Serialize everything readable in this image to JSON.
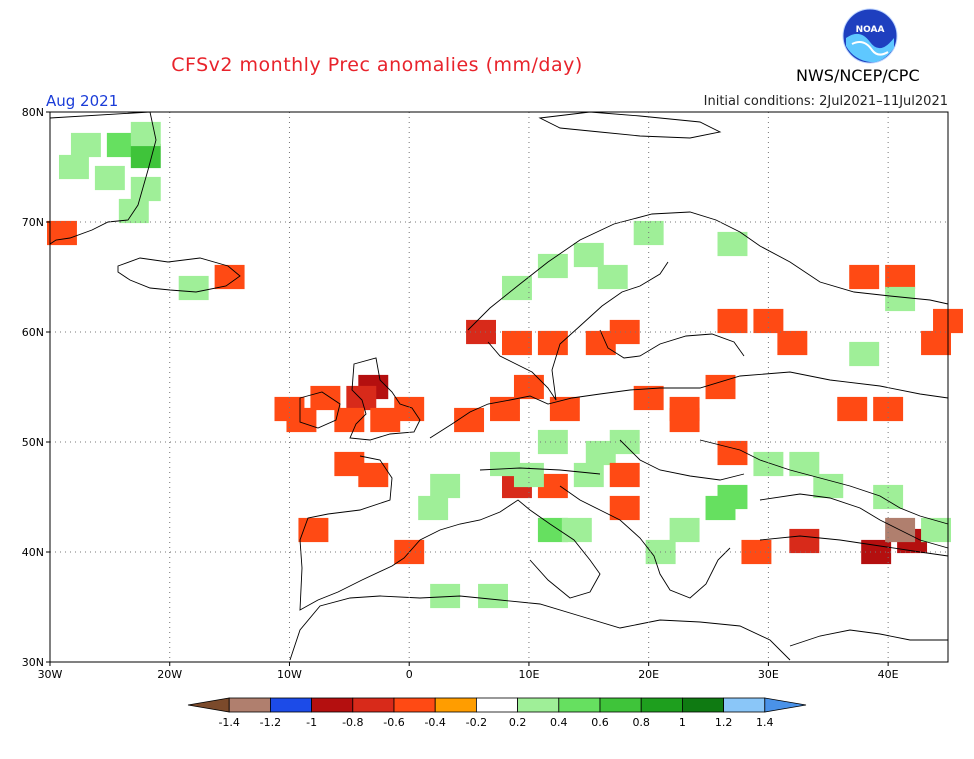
{
  "title": "CFSv2 monthly Prec anomalies (mm/day)",
  "agency": "NWS/NCEP/CPC",
  "logo_text": "NOAA",
  "month_label": "Aug 2021",
  "initial_conditions": "Initial conditions: 2Jul2021–11Jul2021",
  "axes": {
    "lon_ticks": [
      "30W",
      "20W",
      "10W",
      "0",
      "10E",
      "20E",
      "30E",
      "40E"
    ],
    "lat_ticks": [
      "80N",
      "70N",
      "60N",
      "50N",
      "40N",
      "30N"
    ],
    "lon_range": [
      -30,
      45
    ],
    "lat_range": [
      30,
      80
    ]
  },
  "colorbar": {
    "labels": [
      "-1.4",
      "-1.2",
      "-1",
      "-0.8",
      "-0.6",
      "-0.4",
      "-0.2",
      "0.2",
      "0.4",
      "0.6",
      "0.8",
      "1",
      "1.2",
      "1.4"
    ],
    "colors": [
      "#7b4a2b",
      "#b07f6e",
      "#1c4be8",
      "#b40f0f",
      "#d82a1a",
      "#ff4a14",
      "#ff9d00",
      "#ffffff",
      "#9fef98",
      "#66e060",
      "#3fc43a",
      "#1e9f1e",
      "#0f7a12",
      "#8ac6f8",
      "#4a92e8"
    ]
  },
  "anomaly_cells": [
    {
      "lon": -27,
      "lat": 77,
      "v": 0.3
    },
    {
      "lon": -24,
      "lat": 77,
      "v": 0.5
    },
    {
      "lon": -22,
      "lat": 76,
      "v": 0.8
    },
    {
      "lon": -25,
      "lat": 74,
      "v": 0.4
    },
    {
      "lon": -22,
      "lat": 73,
      "v": 0.4
    },
    {
      "lon": -23,
      "lat": 71,
      "v": 0.3
    },
    {
      "lon": -28,
      "lat": 75,
      "v": 0.3
    },
    {
      "lon": -22,
      "lat": 78,
      "v": 0.4
    },
    {
      "lon": -18,
      "lat": 64,
      "v": 0.3
    },
    {
      "lon": -15,
      "lat": 65,
      "v": -0.4
    },
    {
      "lon": -29,
      "lat": 69,
      "v": -0.4
    },
    {
      "lon": 12,
      "lat": 66,
      "v": 0.4
    },
    {
      "lon": 15,
      "lat": 67,
      "v": 0.4
    },
    {
      "lon": 17,
      "lat": 65,
      "v": 0.3
    },
    {
      "lon": 9,
      "lat": 64,
      "v": 0.4
    },
    {
      "lon": 20,
      "lat": 69,
      "v": 0.3
    },
    {
      "lon": 27,
      "lat": 68,
      "v": 0.3
    },
    {
      "lon": 6,
      "lat": 60,
      "v": -0.6
    },
    {
      "lon": 9,
      "lat": 59,
      "v": -0.4
    },
    {
      "lon": 12,
      "lat": 59,
      "v": -0.4
    },
    {
      "lon": 16,
      "lat": 59,
      "v": -0.4
    },
    {
      "lon": 18,
      "lat": 60,
      "v": -0.4
    },
    {
      "lon": -3,
      "lat": 55,
      "v": -0.8
    },
    {
      "lon": -4,
      "lat": 54,
      "v": -0.6
    },
    {
      "lon": -2,
      "lat": 52,
      "v": -0.4
    },
    {
      "lon": -5,
      "lat": 52,
      "v": -0.4
    },
    {
      "lon": 0,
      "lat": 53,
      "v": -0.4
    },
    {
      "lon": -7,
      "lat": 54,
      "v": -0.4
    },
    {
      "lon": 5,
      "lat": 52,
      "v": -0.4
    },
    {
      "lon": 8,
      "lat": 53,
      "v": -0.4
    },
    {
      "lon": 10,
      "lat": 55,
      "v": -0.4
    },
    {
      "lon": 13,
      "lat": 53,
      "v": -0.4
    },
    {
      "lon": 20,
      "lat": 54,
      "v": -0.4
    },
    {
      "lon": 23,
      "lat": 53,
      "v": -0.4
    },
    {
      "lon": 23,
      "lat": 52,
      "v": -0.4
    },
    {
      "lon": 26,
      "lat": 55,
      "v": -0.4
    },
    {
      "lon": 27,
      "lat": 61,
      "v": -0.4
    },
    {
      "lon": 30,
      "lat": 61,
      "v": -0.4
    },
    {
      "lon": -9,
      "lat": 52,
      "v": -0.4
    },
    {
      "lon": -5,
      "lat": 48,
      "v": -0.4
    },
    {
      "lon": -3,
      "lat": 47,
      "v": -0.4
    },
    {
      "lon": -8,
      "lat": 42,
      "v": -0.4
    },
    {
      "lon": 0,
      "lat": 40,
      "v": -0.4
    },
    {
      "lon": 9,
      "lat": 46,
      "v": -0.6
    },
    {
      "lon": 12,
      "lat": 46,
      "v": -0.4
    },
    {
      "lon": 18,
      "lat": 44,
      "v": -0.4
    },
    {
      "lon": 12,
      "lat": 50,
      "v": 0.3
    },
    {
      "lon": 16,
      "lat": 49,
      "v": 0.3
    },
    {
      "lon": 18,
      "lat": 50,
      "v": 0.3
    },
    {
      "lon": 8,
      "lat": 48,
      "v": 0.3
    },
    {
      "lon": 10,
      "lat": 47,
      "v": 0.4
    },
    {
      "lon": 15,
      "lat": 47,
      "v": 0.4
    },
    {
      "lon": 3,
      "lat": 46,
      "v": 0.3
    },
    {
      "lon": 2,
      "lat": 44,
      "v": 0.3
    },
    {
      "lon": 12,
      "lat": 42,
      "v": 0.5
    },
    {
      "lon": 14,
      "lat": 42,
      "v": 0.4
    },
    {
      "lon": 27,
      "lat": 45,
      "v": 0.6
    },
    {
      "lon": 26,
      "lat": 44,
      "v": 0.5
    },
    {
      "lon": 23,
      "lat": 42,
      "v": 0.4
    },
    {
      "lon": 21,
      "lat": 40,
      "v": 0.4
    },
    {
      "lon": 30,
      "lat": 48,
      "v": 0.3
    },
    {
      "lon": 33,
      "lat": 48,
      "v": 0.3
    },
    {
      "lon": 35,
      "lat": 46,
      "v": 0.3
    },
    {
      "lon": 40,
      "lat": 45,
      "v": 0.3
    },
    {
      "lon": 7,
      "lat": 36,
      "v": 0.3
    },
    {
      "lon": 3,
      "lat": 36,
      "v": 0.3
    },
    {
      "lon": 33,
      "lat": 41,
      "v": -0.6
    },
    {
      "lon": 29,
      "lat": 40,
      "v": -0.4
    },
    {
      "lon": 39,
      "lat": 40,
      "v": -0.8
    },
    {
      "lon": 42,
      "lat": 41,
      "v": -0.8
    },
    {
      "lon": 41,
      "lat": 42,
      "v": -1.2
    },
    {
      "lon": 44,
      "lat": 42,
      "v": 0.4
    },
    {
      "lon": 38,
      "lat": 65,
      "v": -0.4
    },
    {
      "lon": 41,
      "lat": 65,
      "v": -0.4
    },
    {
      "lon": 44,
      "lat": 59,
      "v": -0.4
    },
    {
      "lon": 45,
      "lat": 61,
      "v": -0.4
    },
    {
      "lon": 40,
      "lat": 53,
      "v": -0.4
    },
    {
      "lon": 37,
      "lat": 53,
      "v": -0.4
    },
    {
      "lon": 32,
      "lat": 59,
      "v": -0.4
    },
    {
      "lon": 38,
      "lat": 58,
      "v": 0.3
    },
    {
      "lon": 41,
      "lat": 63,
      "v": 0.3
    },
    {
      "lon": 27,
      "lat": 49,
      "v": -0.4
    },
    {
      "lon": 18,
      "lat": 47,
      "v": -0.4
    },
    {
      "lon": -10,
      "lat": 53,
      "v": -0.4
    }
  ]
}
